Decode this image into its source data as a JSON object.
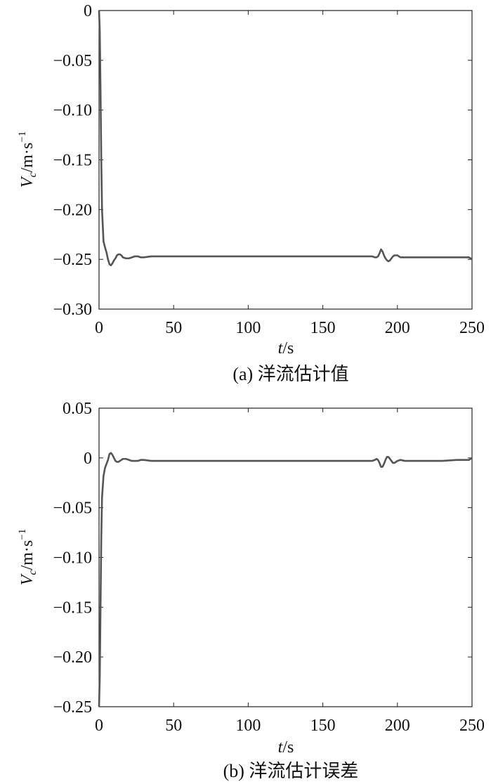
{
  "chart_data": [
    {
      "type": "line",
      "caption": "(a) 洋流估计值",
      "xlabel_var": "t",
      "xlabel_unit": "/s",
      "ylabel_var": "V",
      "ylabel_sub": "c",
      "ylabel_unit": "/m·s",
      "ylabel_exp": "−1",
      "xlim": [
        0,
        250
      ],
      "ylim": [
        -0.3,
        0
      ],
      "xticks": [
        0,
        50,
        100,
        150,
        200,
        250
      ],
      "xtick_labels": [
        "0",
        "50",
        "100",
        "150",
        "200",
        "250"
      ],
      "yticks": [
        0,
        -0.05,
        -0.1,
        -0.15,
        -0.2,
        -0.25,
        -0.3
      ],
      "ytick_labels": [
        "0",
        "−0.05",
        "−0.10",
        "−0.15",
        "−0.20",
        "−0.25",
        "−0.30"
      ],
      "grid": false,
      "line_color": "#555555",
      "series": [
        {
          "x": [
            0,
            0.5,
            1,
            1.5,
            2,
            3,
            4,
            5,
            6,
            7,
            8,
            9,
            10,
            11,
            12,
            13,
            14,
            15,
            16,
            18,
            20,
            22,
            24,
            26,
            28,
            30,
            35,
            40,
            60,
            80,
            100,
            120,
            140,
            160,
            180,
            183,
            185,
            186,
            187,
            188,
            189,
            190,
            191,
            192,
            193,
            194,
            195,
            196,
            197,
            198,
            199,
            200,
            201,
            202,
            203,
            204,
            206,
            208,
            210,
            215,
            220,
            230,
            240,
            245,
            248,
            250
          ],
          "y": [
            0,
            -0.02,
            -0.08,
            -0.15,
            -0.2,
            -0.232,
            -0.238,
            -0.243,
            -0.25,
            -0.255,
            -0.256,
            -0.254,
            -0.251,
            -0.249,
            -0.246,
            -0.245,
            -0.245,
            -0.246,
            -0.248,
            -0.249,
            -0.249,
            -0.248,
            -0.247,
            -0.247,
            -0.248,
            -0.248,
            -0.247,
            -0.247,
            -0.247,
            -0.247,
            -0.247,
            -0.247,
            -0.247,
            -0.247,
            -0.247,
            -0.247,
            -0.248,
            -0.248,
            -0.247,
            -0.244,
            -0.24,
            -0.242,
            -0.246,
            -0.249,
            -0.251,
            -0.252,
            -0.251,
            -0.249,
            -0.247,
            -0.246,
            -0.246,
            -0.246,
            -0.247,
            -0.248,
            -0.248,
            -0.248,
            -0.248,
            -0.248,
            -0.248,
            -0.248,
            -0.248,
            -0.248,
            -0.248,
            -0.248,
            -0.248,
            -0.25
          ]
        }
      ]
    },
    {
      "type": "line",
      "caption": "(b) 洋流估计误差",
      "xlabel_var": "t",
      "xlabel_unit": "/s",
      "ylabel_var": "V",
      "ylabel_sub": "c",
      "ylabel_unit": "/m·s",
      "ylabel_exp": "−1",
      "xlim": [
        0,
        250
      ],
      "ylim": [
        -0.25,
        0.05
      ],
      "xticks": [
        0,
        50,
        100,
        150,
        200,
        250
      ],
      "xtick_labels": [
        "0",
        "50",
        "100",
        "150",
        "200",
        "250"
      ],
      "yticks": [
        0.05,
        0,
        -0.05,
        -0.1,
        -0.15,
        -0.2,
        -0.25
      ],
      "ytick_labels": [
        "0.05",
        "0",
        "−0.05",
        "−0.10",
        "−0.15",
        "−0.20",
        "−0.25"
      ],
      "grid": false,
      "line_color": "#555555",
      "series": [
        {
          "x": [
            0,
            0.5,
            1,
            1.5,
            2,
            3,
            4,
            5,
            6,
            7,
            8,
            9,
            10,
            11,
            12,
            13,
            14,
            15,
            16,
            18,
            20,
            22,
            24,
            26,
            28,
            30,
            35,
            40,
            60,
            80,
            100,
            120,
            140,
            160,
            180,
            183,
            185,
            186,
            187,
            188,
            189,
            190,
            191,
            192,
            193,
            194,
            195,
            196,
            197,
            198,
            199,
            200,
            202,
            205,
            210,
            220,
            230,
            240,
            245,
            248,
            250
          ],
          "y": [
            -0.25,
            -0.22,
            -0.15,
            -0.08,
            -0.04,
            -0.018,
            -0.01,
            -0.006,
            -0.002,
            0.004,
            0.005,
            0.003,
            0.0,
            -0.003,
            -0.004,
            -0.004,
            -0.003,
            -0.002,
            -0.001,
            -0.001,
            -0.002,
            -0.003,
            -0.003,
            -0.003,
            -0.002,
            -0.002,
            -0.003,
            -0.003,
            -0.003,
            -0.003,
            -0.003,
            -0.003,
            -0.003,
            -0.003,
            -0.003,
            -0.003,
            -0.002,
            -0.001,
            -0.002,
            -0.005,
            -0.009,
            -0.009,
            -0.006,
            -0.002,
            0.001,
            0.001,
            -0.001,
            -0.003,
            -0.005,
            -0.005,
            -0.004,
            -0.003,
            -0.002,
            -0.003,
            -0.003,
            -0.003,
            -0.003,
            -0.002,
            -0.002,
            -0.002,
            0.0
          ]
        }
      ]
    }
  ]
}
